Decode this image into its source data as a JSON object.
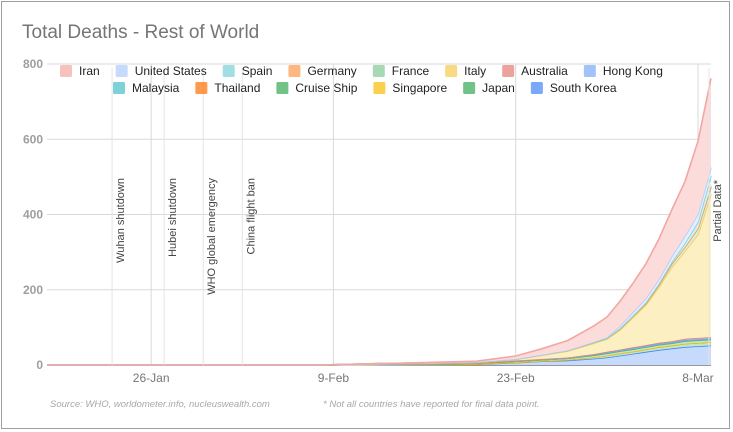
{
  "chart_data": {
    "type": "area",
    "stacked": true,
    "title": "Total Deaths - Rest of World",
    "ylim": [
      0,
      800
    ],
    "yticks": [
      "0",
      "200",
      "400",
      "600",
      "800"
    ],
    "x_range": [
      "2020-01-18",
      "2020-03-09"
    ],
    "xticks": [
      {
        "date": "2020-01-26",
        "label": "26-Jan"
      },
      {
        "date": "2020-02-09",
        "label": "9-Feb"
      },
      {
        "date": "2020-02-23",
        "label": "23-Feb"
      },
      {
        "date": "2020-03-08",
        "label": "8-Mar"
      }
    ],
    "grid": true,
    "legend_position": "top",
    "dates": [
      "2020-01-18",
      "2020-02-08",
      "2020-02-13",
      "2020-02-20",
      "2020-02-23",
      "2020-02-25",
      "2020-02-27",
      "2020-02-29",
      "2020-03-01",
      "2020-03-02",
      "2020-03-03",
      "2020-03-04",
      "2020-03-05",
      "2020-03-06",
      "2020-03-07",
      "2020-03-08",
      "2020-03-09"
    ],
    "series": [
      {
        "name": "South Korea",
        "color": "#4285f4",
        "fill": "#c6dafc",
        "values": [
          0,
          0,
          1,
          2,
          6,
          10,
          12,
          17,
          20,
          25,
          30,
          35,
          40,
          44,
          48,
          50,
          52
        ]
      },
      {
        "name": "Japan",
        "color": "#34a853",
        "fill": "#c3e6cb",
        "values": [
          0,
          0,
          1,
          1,
          1,
          1,
          2,
          4,
          5,
          6,
          6,
          7,
          8,
          8,
          9,
          9,
          9
        ]
      },
      {
        "name": "Singapore",
        "color": "#fbbc04",
        "fill": "#fde7a8",
        "values": [
          0,
          0,
          0,
          0,
          0,
          0,
          0,
          0,
          0,
          0,
          0,
          0,
          0,
          0,
          0,
          0,
          0
        ]
      },
      {
        "name": "Cruise Ship",
        "color": "#34a853",
        "fill": "#c3e6cb",
        "values": [
          0,
          0,
          0,
          2,
          3,
          3,
          4,
          5,
          6,
          6,
          6,
          6,
          6,
          6,
          7,
          7,
          7
        ]
      },
      {
        "name": "Thailand",
        "color": "#ff6d01",
        "fill": "#ffd0b0",
        "values": [
          0,
          0,
          0,
          0,
          0,
          0,
          0,
          1,
          1,
          1,
          1,
          1,
          1,
          1,
          1,
          1,
          1
        ]
      },
      {
        "name": "Malaysia",
        "color": "#46bdc6",
        "fill": "#c5e9ec",
        "values": [
          0,
          0,
          0,
          0,
          0,
          0,
          0,
          0,
          0,
          0,
          0,
          0,
          0,
          0,
          0,
          0,
          0
        ]
      },
      {
        "name": "Hong Kong",
        "color": "#7baaf7",
        "fill": "#d3e3fc",
        "values": [
          0,
          0,
          1,
          1,
          2,
          2,
          2,
          2,
          2,
          2,
          2,
          2,
          2,
          2,
          2,
          2,
          2
        ]
      },
      {
        "name": "Australia",
        "color": "#e67c73",
        "fill": "#f6d2cf",
        "values": [
          0,
          0,
          0,
          0,
          0,
          0,
          0,
          0,
          1,
          1,
          2,
          2,
          2,
          2,
          3,
          3,
          3
        ]
      },
      {
        "name": "Italy",
        "color": "#f7cb4d",
        "fill": "#fcefc2",
        "values": [
          0,
          0,
          0,
          1,
          3,
          10,
          17,
          29,
          34,
          52,
          79,
          107,
          148,
          197,
          233,
          275,
          380
        ]
      },
      {
        "name": "France",
        "color": "#81c995",
        "fill": "#d8efdf",
        "values": [
          0,
          0,
          1,
          1,
          1,
          1,
          2,
          2,
          2,
          3,
          4,
          4,
          6,
          9,
          11,
          16,
          19
        ]
      },
      {
        "name": "Germany",
        "color": "#ff994d",
        "fill": "#ffdfc7",
        "values": [
          0,
          0,
          0,
          0,
          0,
          0,
          0,
          0,
          0,
          0,
          0,
          0,
          0,
          0,
          0,
          0,
          2
        ]
      },
      {
        "name": "Spain",
        "color": "#78d2d8",
        "fill": "#d6f0f2",
        "values": [
          0,
          0,
          0,
          0,
          0,
          0,
          0,
          0,
          0,
          1,
          1,
          2,
          3,
          5,
          10,
          17,
          28
        ]
      },
      {
        "name": "United States",
        "color": "#aecbfa",
        "fill": "#e5eefd",
        "values": [
          0,
          0,
          0,
          0,
          0,
          0,
          0,
          1,
          2,
          6,
          9,
          11,
          12,
          15,
          19,
          21,
          22
        ]
      },
      {
        "name": "Iran",
        "color": "#f4a6a3",
        "fill": "#fbdcda",
        "values": [
          0,
          0,
          0,
          2,
          8,
          16,
          26,
          43,
          54,
          66,
          77,
          92,
          107,
          124,
          145,
          194,
          237
        ]
      }
    ],
    "legend_order": [
      "Iran",
      "United States",
      "Spain",
      "Germany",
      "France",
      "Italy",
      "Australia",
      "Hong Kong",
      "Malaysia",
      "Thailand",
      "Cruise Ship",
      "Singapore",
      "Japan",
      "South Korea"
    ],
    "annotations": [
      {
        "date": "2020-01-23",
        "text": "Wuhan shutdown"
      },
      {
        "date": "2020-01-27",
        "text": "Hubei shutdown"
      },
      {
        "date": "2020-01-30",
        "text": "WHO global emergency"
      },
      {
        "date": "2020-02-02",
        "text": "China flight ban"
      },
      {
        "date": "2020-03-09",
        "text": "Partial Data*"
      }
    ],
    "footnotes": {
      "source": "Source: WHO, worldometer.info, nucleuswealth.com",
      "note": "* Not all countries have reported for final data point."
    }
  }
}
